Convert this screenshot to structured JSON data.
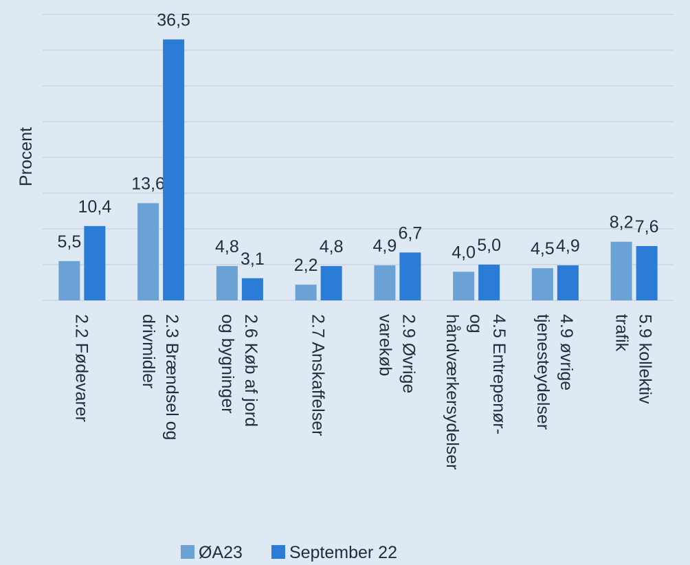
{
  "chart_data": {
    "type": "bar",
    "axis_label_y": "Procent",
    "categories": [
      "2.2 Fødevarer",
      "2.3 Brændsel og drivmidler",
      "2.6 Køb af jord og bygninger",
      "2.7 Anskaffelser",
      "2.9 Øvrige varekøb",
      "4.5 Entrepenør- og håndværkersydelser",
      "4.9 øvrige tjenesteydelser",
      "5.9 kollektiv trafik"
    ],
    "series": [
      {
        "name": "ØA23",
        "color": "#6aa2d6",
        "values": [
          5.5,
          13.6,
          4.8,
          2.2,
          4.9,
          4.0,
          4.5,
          8.2
        ],
        "value_labels": [
          "5,5",
          "13,6",
          "4,8",
          "2,2",
          "4,9",
          "4,0",
          "4,5",
          "8,2"
        ]
      },
      {
        "name": "September 22",
        "color": "#2b7cd6",
        "values": [
          10.4,
          36.5,
          3.1,
          4.8,
          6.7,
          5.0,
          4.9,
          7.6
        ],
        "value_labels": [
          "10,4",
          "36,5",
          "3,1",
          "4,8",
          "6,7",
          "5,0",
          "4,9",
          "7,6"
        ]
      }
    ],
    "ylim": [
      0,
      40
    ],
    "yticks": [
      0,
      5,
      10,
      15,
      20,
      25,
      30,
      35,
      40
    ],
    "grid": true,
    "legend": "bottom"
  }
}
